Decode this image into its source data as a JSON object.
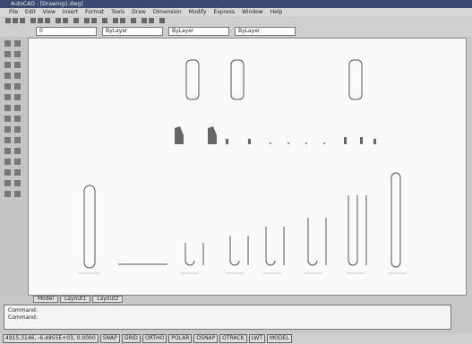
{
  "title_bar": "AutoCAD - [Drawing1.dwg]",
  "menu": [
    "File",
    "Edit",
    "View",
    "Insert",
    "Format",
    "Tools",
    "Draw",
    "Dimension",
    "Modify",
    "Express",
    "Window",
    "Help"
  ],
  "toolbar": {
    "layer": "0",
    "color": "ByLayer",
    "linetype": "ByLayer",
    "lineweight": "ByLayer"
  },
  "tabs": [
    "Model",
    "Layout1",
    "Layout2"
  ],
  "command_lines": [
    "Command:",
    "Command:"
  ],
  "coordinates": "4915.3146, -6.4855E+03, 0.0000",
  "status_buttons": [
    "SNAP",
    "GRID",
    "ORTHO",
    "POLAR",
    "OSNAP",
    "OTRACK",
    "LWT",
    "MODEL"
  ]
}
